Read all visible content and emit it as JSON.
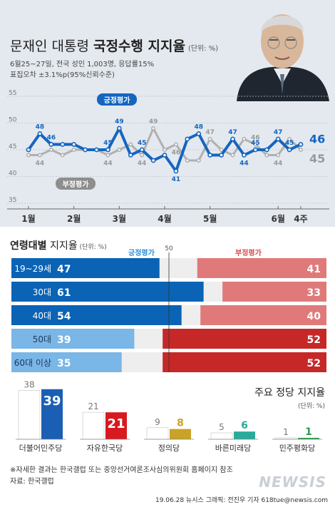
{
  "header": {
    "title_prefix": "문재인 대통령 ",
    "title_bold": "국정수행 지지율",
    "title_unit": "(단위: %)",
    "survey_line1": "6월25~27일, 전국 성인 1,003명, 응답률15%",
    "survey_line2": "표집오차 ±3.1%p(95%신뢰수준)"
  },
  "colors": {
    "positive": "#1565c0",
    "negative": "#b0b0b0",
    "positive_bar": "#2a8fd6",
    "negative_bar": "#d64a4a",
    "highlight_pos": "#0a63b5",
    "highlight_neg": "#c62828"
  },
  "chart_data": [
    {
      "type": "line",
      "y_ticks": [
        35,
        40,
        45,
        50,
        55
      ],
      "ylim": [
        35,
        55
      ],
      "x_labels": [
        "1월",
        "2월",
        "3월",
        "4월",
        "5월",
        "6월",
        "4주"
      ],
      "x_label_index": [
        0,
        4,
        8,
        12,
        16,
        22,
        24
      ],
      "grid": true,
      "series": [
        {
          "name": "긍정평가",
          "values": [
            45,
            48,
            46,
            46,
            46,
            45,
            45,
            45,
            49,
            44,
            45,
            43,
            44,
            41,
            47,
            48,
            44,
            44,
            47,
            44,
            45,
            45,
            47,
            45,
            46
          ],
          "labels": [
            null,
            "48",
            "46",
            null,
            null,
            null,
            null,
            "45",
            "49",
            null,
            "45",
            null,
            null,
            "41",
            null,
            "48",
            null,
            null,
            "47",
            "44",
            "45",
            null,
            "47",
            "45",
            "46"
          ]
        },
        {
          "name": "부정평가",
          "values": [
            44,
            44,
            45,
            44,
            45,
            45,
            45,
            44,
            45,
            46,
            44,
            49,
            45,
            46,
            43,
            43,
            47,
            45,
            44,
            47,
            46,
            44,
            44,
            47,
            45
          ],
          "labels": [
            null,
            "44",
            null,
            null,
            null,
            null,
            null,
            "44",
            null,
            null,
            "44",
            "49",
            null,
            "46",
            null,
            null,
            "47",
            null,
            null,
            null,
            "46",
            null,
            "44",
            null,
            "45"
          ]
        }
      ]
    },
    {
      "type": "bar",
      "title_bold": "연령대별",
      "title_rest": " 지지율",
      "title_unit": "(단위: %)",
      "midline_label": "50",
      "legend": [
        "긍정평가",
        "부정평가"
      ],
      "categories": [
        "19~29세",
        "30대",
        "40대",
        "50대",
        "60대 이상"
      ],
      "series": [
        {
          "name": "긍정평가",
          "values": [
            47,
            61,
            54,
            39,
            35
          ]
        },
        {
          "name": "부정평가",
          "values": [
            41,
            33,
            40,
            52,
            52
          ]
        }
      ],
      "highlight": [
        "positive",
        "positive",
        "positive",
        "negative",
        "negative"
      ]
    },
    {
      "type": "bar",
      "title": "주요 정당 지지율",
      "title_unit": "(단위: %)",
      "categories": [
        "더불어민주당",
        "자유한국당",
        "정의당",
        "바른미래당",
        "민주평화당"
      ],
      "series": [
        {
          "name": "",
          "values": [
            38,
            21,
            9,
            5,
            1
          ]
        },
        {
          "name": "",
          "values": [
            39,
            21,
            8,
            6,
            1
          ]
        }
      ],
      "party_colors": [
        "#1a5fb4",
        "#d71920",
        "#c9a227",
        "#2aaa9a",
        "#2e9e4f"
      ]
    }
  ],
  "footer": {
    "note": "※자세한 결과는 한국갤럽 또는 중앙선거여론조사심의위원회 홈페이지 참조",
    "source": "자료: 한국갤럽",
    "credit": "19.06.28 뉴시스 그래픽: 전진우 기자 618tue@newsis.com",
    "watermark": "NEWSIS"
  }
}
